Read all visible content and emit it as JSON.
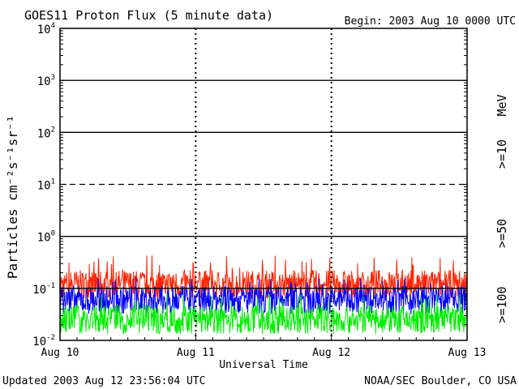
{
  "header": {
    "title": "GOES11 Proton Flux (5 minute data)",
    "begin": "Begin: 2003 Aug 10 0000 UTC"
  },
  "footer": {
    "updated": "Updated 2003 Aug 12 23:56:04 UTC",
    "credit": "NOAA/SEC Boulder, CO USA"
  },
  "chart_data": {
    "type": "line",
    "title": "GOES11 Proton Flux (5 minute data)",
    "xlabel": "Universal Time",
    "ylabel": "Particles cm⁻²s⁻¹sr⁻¹",
    "yscale": "log",
    "ylim": [
      0.01,
      10000
    ],
    "xlim": [
      0,
      3
    ],
    "x_tick_labels": [
      "Aug 10",
      "Aug 11",
      "Aug 12",
      "Aug 13"
    ],
    "y_tick_labels": [
      {
        "base": "10",
        "exp": "-2"
      },
      {
        "base": "10",
        "exp": "-1"
      },
      {
        "base": "10",
        "exp": "0"
      },
      {
        "base": "10",
        "exp": "1"
      },
      {
        "base": "10",
        "exp": "2"
      },
      {
        "base": "10",
        "exp": "3"
      },
      {
        "base": "10",
        "exp": "4"
      }
    ],
    "unit_label": "MeV",
    "grid": true,
    "legend_placement": "right",
    "threshold_lines": [
      {
        "style": "solid",
        "value": 1000
      },
      {
        "style": "solid",
        "value": 100
      },
      {
        "style": "dashed",
        "value": 10
      },
      {
        "style": "solid",
        "value": 1
      },
      {
        "style": "solid",
        "value": 0.1
      }
    ],
    "series": [
      {
        "name": ">=10",
        "color": "#ff2200",
        "typical": 0.12,
        "min": 0.06,
        "max": 0.45
      },
      {
        "name": ">=50",
        "color": "#0000ff",
        "typical": 0.06,
        "min": 0.025,
        "max": 0.16
      },
      {
        "name": ">=100",
        "color": "#00ee00",
        "typical": 0.025,
        "min": 0.012,
        "max": 0.08
      }
    ]
  }
}
